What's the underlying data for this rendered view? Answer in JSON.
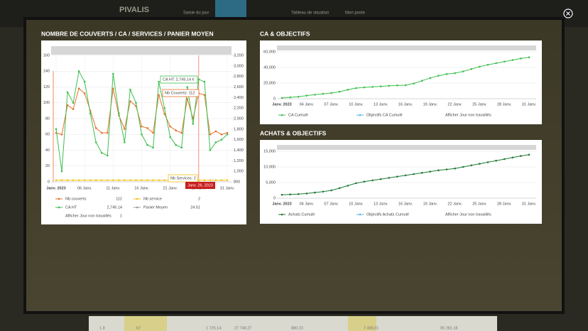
{
  "background": {
    "brand": "PIVALIS",
    "nav": [
      "Saisie du jour",
      "Tableau de situation",
      "Mon poste"
    ],
    "footer_values": [
      "1.8",
      "67",
      "1 725.14",
      "27 748.27",
      "880.23",
      "7 496.01",
      "05 281.18"
    ]
  },
  "chart_data": [
    {
      "type": "line",
      "title": "NOMBRE DE COUVERTS / CA / SERVICES / PANIER MOYEN",
      "categories": [
        "Janv. 2023",
        null,
        null,
        null,
        null,
        "06 Janv.",
        null,
        null,
        null,
        null,
        "11 Janv.",
        null,
        null,
        null,
        null,
        "16 Janv.",
        null,
        null,
        null,
        null,
        "21 Janv.",
        null,
        null,
        null,
        null,
        "26 Janv.",
        null,
        null,
        null,
        null,
        "31 Janv."
      ],
      "ylim": [
        0,
        160
      ],
      "yticks": [
        0,
        20,
        40,
        60,
        80,
        100,
        120,
        140,
        160
      ],
      "y2lim": [
        800,
        3200
      ],
      "y2ticks": [
        800,
        {
          "value": 1000,
          "label": "1,000"
        },
        {
          "value": 1200,
          "label": "1,200"
        },
        {
          "value": 1400,
          "label": "1,400"
        },
        {
          "value": 1600,
          "label": "1,600"
        },
        {
          "value": 1800,
          "label": "1,800"
        },
        {
          "value": 2000,
          "label": "2,000"
        },
        {
          "value": 2200,
          "label": "2,200"
        },
        {
          "value": 2400,
          "label": "2,400"
        },
        {
          "value": 2600,
          "label": "2,600"
        },
        {
          "value": 2800,
          "label": "2,800"
        },
        {
          "value": 3000,
          "label": "3,000"
        },
        {
          "value": 3200,
          "label": "3,200"
        }
      ],
      "grid": true,
      "series": [
        {
          "name": "Nb couverts",
          "color": "#e8702a",
          "legend_value": 112,
          "values": [
            62,
            60,
            97,
            92,
            118,
            112,
            90,
            68,
            62,
            62,
            118,
            84,
            67,
            102,
            96,
            70,
            68,
            62,
            110,
            86,
            70,
            65,
            62,
            105,
            80,
            112,
            110,
            60,
            64,
            60,
            62
          ]
        },
        {
          "name": "Nb service",
          "color": "#f2c315",
          "legend_value": 2,
          "values": [
            2,
            2,
            2,
            2,
            2,
            2,
            2,
            2,
            2,
            2,
            2,
            2,
            2,
            2,
            2,
            2,
            2,
            2,
            2,
            2,
            2,
            2,
            2,
            2,
            2,
            2,
            2,
            2,
            2,
            2,
            2
          ]
        },
        {
          "name": "CA HT",
          "color": "#3fbf4f",
          "axis": "y2",
          "legend_value": 2745.14,
          "legend_value_label": "2,745.14",
          "values": [
            1800,
            1000,
            2500,
            2300,
            2900,
            2700,
            2100,
            1550,
            1350,
            1300,
            2850,
            2100,
            1550,
            2550,
            2300,
            1700,
            1500,
            1450,
            2700,
            2200,
            1650,
            1500,
            1450,
            2600,
            1900,
            2745.14,
            2700,
            1400,
            1550,
            1600,
            1700
          ]
        },
        {
          "name": "Panier Moyen",
          "color": "#9a9a9a",
          "legend_value": 24.51
        }
      ],
      "toggle": {
        "label": "Afficher Jour non travaillés",
        "value": 1
      },
      "tooltips": [
        "CA HT: 2,745.14 €",
        "Nb Couverts: 112",
        "Nb Services: 2"
      ],
      "crosshair_label": "Janv. 26, 2023"
    },
    {
      "type": "line",
      "title": "CA & OBJECTIFS",
      "categories": [
        "Janv. 2023",
        null,
        null,
        "04 Janv.",
        null,
        null,
        "07 Janv.",
        null,
        null,
        "10 Janv.",
        null,
        null,
        "13 Janv.",
        null,
        null,
        "16 Janv.",
        null,
        null,
        "19 Janv.",
        null,
        null,
        "22 Janv.",
        null,
        null,
        "25 Janv.",
        null,
        null,
        "28 Janv.",
        null,
        null,
        "31 Janv."
      ],
      "ylim": [
        0,
        60000
      ],
      "yticks": [
        0,
        {
          "value": 20000,
          "label": "20,000"
        },
        {
          "value": 40000,
          "label": "40,000"
        },
        {
          "value": 60000,
          "label": "60,000"
        }
      ],
      "grid": true,
      "series": [
        {
          "name": "CA Cumulé",
          "color": "#3fbf4f",
          "values": [
            1000,
            1800,
            2600,
            4000,
            5200,
            6300,
            7300,
            9000,
            11500,
            13600,
            14500,
            15200,
            15800,
            16500,
            17000,
            17300,
            19500,
            23000,
            26500,
            29500,
            31500,
            32700,
            35000,
            38000,
            41000,
            43500,
            45500,
            47500,
            49500,
            51500,
            53000
          ]
        },
        {
          "name": "Objectifs CA Cumulé",
          "color": "#5ab4e6"
        }
      ],
      "toggle": {
        "label": "Afficher Jour non travaillés"
      }
    },
    {
      "type": "line",
      "title": "ACHATS & OBJECTIFS",
      "categories": [
        "Janv. 2023",
        null,
        null,
        "04 Janv.",
        null,
        null,
        "07 Janv.",
        null,
        null,
        "10 Janv.",
        null,
        null,
        "13 Janv.",
        null,
        null,
        "16 Janv.",
        null,
        null,
        "19 Janv.",
        null,
        null,
        "22 Janv.",
        null,
        null,
        "25 Janv.",
        null,
        null,
        "28 Janv.",
        null,
        null,
        "31 Janv."
      ],
      "ylim": [
        0,
        15000
      ],
      "yticks": [
        0,
        {
          "value": 5000,
          "label": "5,000"
        },
        {
          "value": 10000,
          "label": "10,000"
        },
        {
          "value": 15000,
          "label": "15,000"
        }
      ],
      "grid": true,
      "series": [
        {
          "name": "Achats Cumulé",
          "color": "#1f7a35",
          "values": [
            1100,
            1200,
            1300,
            1500,
            1800,
            2100,
            2500,
            3200,
            4000,
            4800,
            5300,
            5700,
            6100,
            6500,
            6900,
            7300,
            7700,
            8100,
            8500,
            8900,
            9200,
            9500,
            10000,
            10500,
            11000,
            11500,
            12000,
            12500,
            13000,
            13500,
            13900
          ]
        },
        {
          "name": "Objectifs Achats Cumulé",
          "color": "#5ab4e6"
        }
      ],
      "toggle": {
        "label": "Afficher Jour non travaillés"
      }
    }
  ]
}
